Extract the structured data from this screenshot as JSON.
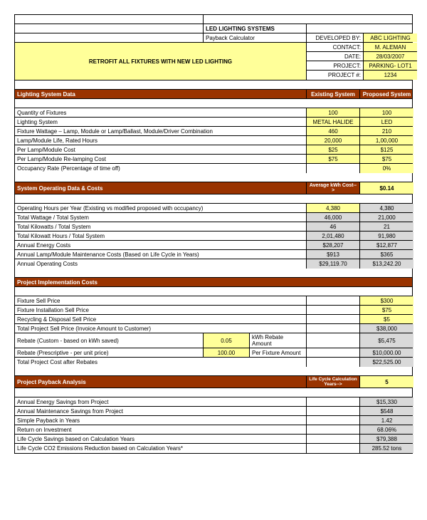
{
  "header": {
    "title": "LED LIGHTING SYSTEMS",
    "subtitle": "Payback Calculator",
    "banner": "RETROFIT ALL FIXTURES WITH NEW LED LIGHTING",
    "dev_label": "DEVELOPED BY:",
    "dev_val": "ABC LIGHTING",
    "contact_label": "CONTACT:",
    "contact_val": "M. ALEMAN",
    "date_label": "DATE:",
    "date_val": "28/03/2007",
    "project_label": "PROJECT:",
    "project_val": "PARKING- LOT1",
    "projectnum_label": "PROJECT #:",
    "projectnum_val": "1234"
  },
  "section1": {
    "title": "Lighting System Data",
    "col1": "Existing System",
    "col2": "Proposed System",
    "rows": [
      {
        "label": "Quantity of Fixtures",
        "v1": "100",
        "v2": "100",
        "y1": true,
        "y2": true
      },
      {
        "label": "Lighting System",
        "v1": "METAL HALIDE",
        "v2": "LED",
        "y1": true,
        "y2": true
      },
      {
        "label": "Fixture Wattage – Lamp, Module or Lamp/Ballast, Module/Driver Combination",
        "v1": "460",
        "v2": "210",
        "y1": true,
        "y2": true
      },
      {
        "label": "Lamp/Module Life, Rated Hours",
        "v1": "20,000",
        "v2": "1,00,000",
        "y1": true,
        "y2": true
      },
      {
        "label": "Per Lamp/Module Cost",
        "v1": "$25",
        "v2": "$125",
        "y1": true,
        "y2": true
      },
      {
        "label": "Per Lamp/Module Re-lamping Cost",
        "v1": "$75",
        "v2": "$75",
        "y1": true,
        "y2": true
      },
      {
        "label": "Occupancy Rate (Percentage of time off)",
        "v1": "",
        "v2": "0%",
        "y1": false,
        "y2": true
      }
    ]
  },
  "section2": {
    "title": "System Operating Data & Costs",
    "col1": "Average kWh Cost-->",
    "col2": "$0.14",
    "rows": [
      {
        "label": "Operating Hours per Year (Existing vs modified proposed with occupancy)",
        "v1": "4,380",
        "v2": "4,380",
        "g1": false,
        "g2": true,
        "y1": true
      },
      {
        "label": "Total Wattage / Total System",
        "v1": "46,000",
        "v2": "21,000",
        "g1": true,
        "g2": true
      },
      {
        "label": "Total Kilowatts / Total System",
        "v1": "46",
        "v2": "21",
        "g1": true,
        "g2": true
      },
      {
        "label": "Total Kilowatt Hours / Total System",
        "v1": "2,01,480",
        "v2": "91,980",
        "g1": true,
        "g2": true
      },
      {
        "label": "Annual Energy Costs",
        "v1": "$28,207",
        "v2": "$12,877",
        "g1": true,
        "g2": true
      },
      {
        "label": "Annual Lamp/Module Maintenance Costs (Based on Life Cycle in Years)",
        "v1": "$913",
        "v2": "$365",
        "g1": true,
        "g2": true
      },
      {
        "label": "Annual Operating Costs",
        "v1": "$29,119.70",
        "v2": "$13,242.20",
        "g1": true,
        "g2": true
      }
    ]
  },
  "section3": {
    "title": "Project Implementation Costs",
    "rows": [
      {
        "label": "Fixture Sell Price",
        "v2": "$300",
        "y2": true
      },
      {
        "label": "Fixture Installation Sell Price",
        "v2": "$75",
        "y2": true
      },
      {
        "label": "Recycling & Disposal Sell Price",
        "v2": "$5",
        "y2": true
      },
      {
        "label": "Total Project Sell Price (Invoice Amount to Customer)",
        "v2": "$38,000",
        "g2": true
      },
      {
        "label": "Rebate (Custom - based on kWh saved)",
        "mid": "0.05",
        "midlabel": "kWh Rebate Amount",
        "v2": "$5,475",
        "g2": true
      },
      {
        "label": "Rebate (Prescriptive - per unit price)",
        "mid": "100.00",
        "midlabel": "Per Fixture Amount",
        "v2": "$10,000.00",
        "g2": true
      },
      {
        "label": "Total Project Cost after Rebates",
        "v2": "$22,525.00",
        "g2": true
      }
    ]
  },
  "section4": {
    "title": "Project Payback Analysis",
    "col1": "Life Cycle Calculation Years-->",
    "col2": "5",
    "rows": [
      {
        "label": "Annual Energy Savings from Project",
        "v2": "$15,330",
        "g2": true
      },
      {
        "label": "Annual Maintenance Savings from Project",
        "v2": "$548",
        "g2": true
      },
      {
        "label": "Simple Payback in Years",
        "v2": "1.42",
        "g2": true
      },
      {
        "label": "Return on Investment",
        "v2": "68.06%",
        "g2": true
      },
      {
        "label": "Life Cycle Savings based on Calculation Years",
        "v2": "$79,388",
        "g2": true
      },
      {
        "label": "Life Cycle CO2 Emissions Reduction based on Calculation Years*",
        "v2": "285.52 tons",
        "g2": true
      }
    ]
  },
  "colors": {
    "yellow": "#ffff99",
    "grey": "#d9d9d9",
    "brown": "#993300"
  }
}
